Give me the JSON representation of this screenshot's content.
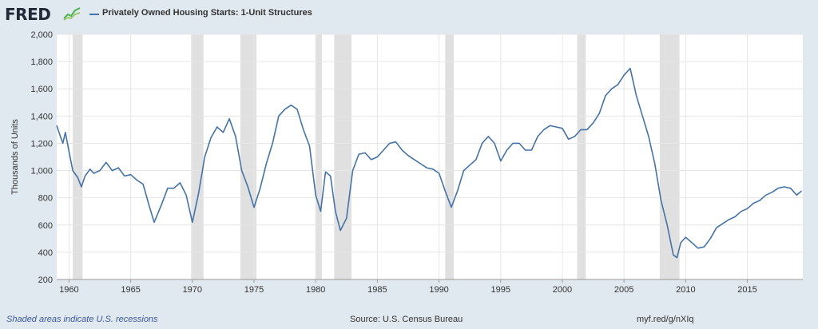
{
  "header": {
    "brand": "FRED",
    "brand_icon": "trend-graph-icon",
    "series_label": "Privately Owned Housing Starts: 1-Unit Structures"
  },
  "footer": {
    "recession_note": "Shaded areas indicate U.S. recessions",
    "source": "Source: U.S. Census Bureau",
    "short_link": "myf.red/g/nXIq"
  },
  "colors": {
    "background": "#e1e9f0",
    "series": "#4572a7",
    "recession": "#e0e0e0",
    "grid": "#e6e6e6"
  },
  "chart_data": {
    "type": "line",
    "title": "",
    "xlabel": "",
    "ylabel": "Thousands of Units",
    "xlim": [
      1959,
      2019.5
    ],
    "ylim": [
      200,
      2000
    ],
    "yticks": [
      200,
      400,
      600,
      800,
      1000,
      1200,
      1400,
      1600,
      1800,
      2000
    ],
    "ytick_labels": [
      "200",
      "400",
      "600",
      "800",
      "1,000",
      "1,200",
      "1,400",
      "1,600",
      "1,800",
      "2,000"
    ],
    "xticks": [
      1960,
      1965,
      1970,
      1975,
      1980,
      1985,
      1990,
      1995,
      2000,
      2005,
      2010,
      2015
    ],
    "xtick_labels": [
      "1960",
      "1965",
      "1970",
      "1975",
      "1980",
      "1985",
      "1990",
      "1995",
      "2000",
      "2005",
      "2010",
      "2015"
    ],
    "grid": true,
    "recessions": [
      [
        1960.3,
        1961.1
      ],
      [
        1969.9,
        1970.9
      ],
      [
        1973.9,
        1975.2
      ],
      [
        1980.0,
        1980.5
      ],
      [
        1981.5,
        1982.9
      ],
      [
        1990.5,
        1991.2
      ],
      [
        2001.2,
        2001.9
      ],
      [
        2007.9,
        2009.5
      ]
    ],
    "series": [
      {
        "name": "Privately Owned Housing Starts: 1-Unit Structures",
        "x": [
          1959.0,
          1959.3,
          1959.5,
          1959.7,
          1960.0,
          1960.3,
          1960.7,
          1961.0,
          1961.3,
          1961.7,
          1962.0,
          1962.5,
          1963.0,
          1963.5,
          1964.0,
          1964.5,
          1965.0,
          1965.5,
          1966.0,
          1966.5,
          1966.9,
          1967.5,
          1968.0,
          1968.5,
          1969.0,
          1969.5,
          1970.0,
          1970.5,
          1971.0,
          1971.5,
          1972.0,
          1972.5,
          1973.0,
          1973.5,
          1974.0,
          1974.5,
          1975.0,
          1975.5,
          1976.0,
          1976.5,
          1977.0,
          1977.5,
          1978.0,
          1978.5,
          1979.0,
          1979.5,
          1980.0,
          1980.4,
          1980.8,
          1981.2,
          1981.6,
          1982.0,
          1982.5,
          1983.0,
          1983.5,
          1984.0,
          1984.5,
          1985.0,
          1985.5,
          1986.0,
          1986.5,
          1987.0,
          1987.5,
          1988.0,
          1988.5,
          1989.0,
          1989.5,
          1990.0,
          1990.5,
          1991.0,
          1991.5,
          1992.0,
          1992.5,
          1993.0,
          1993.5,
          1994.0,
          1994.5,
          1995.0,
          1995.5,
          1996.0,
          1996.5,
          1997.0,
          1997.5,
          1998.0,
          1998.5,
          1999.0,
          1999.5,
          2000.0,
          2000.5,
          2001.0,
          2001.5,
          2002.0,
          2002.5,
          2003.0,
          2003.5,
          2004.0,
          2004.5,
          2005.0,
          2005.5,
          2006.0,
          2006.5,
          2007.0,
          2007.5,
          2008.0,
          2008.5,
          2009.0,
          2009.3,
          2009.6,
          2010.0,
          2010.5,
          2011.0,
          2011.5,
          2012.0,
          2012.5,
          2013.0,
          2013.5,
          2014.0,
          2014.5,
          2015.0,
          2015.5,
          2016.0,
          2016.5,
          2017.0,
          2017.5,
          2018.0,
          2018.5,
          2019.0,
          2019.4
        ],
        "values": [
          1330,
          1250,
          1200,
          1280,
          1140,
          1000,
          950,
          880,
          960,
          1010,
          980,
          1000,
          1060,
          1000,
          1020,
          960,
          970,
          930,
          900,
          740,
          620,
          750,
          870,
          870,
          910,
          820,
          620,
          830,
          1100,
          1240,
          1320,
          1280,
          1380,
          1250,
          1000,
          880,
          730,
          870,
          1050,
          1200,
          1400,
          1450,
          1480,
          1450,
          1300,
          1180,
          820,
          700,
          990,
          960,
          700,
          560,
          650,
          1000,
          1120,
          1130,
          1080,
          1100,
          1150,
          1200,
          1210,
          1150,
          1110,
          1080,
          1050,
          1020,
          1010,
          980,
          850,
          730,
          850,
          1000,
          1040,
          1080,
          1200,
          1250,
          1200,
          1070,
          1150,
          1200,
          1200,
          1150,
          1150,
          1250,
          1300,
          1330,
          1320,
          1310,
          1230,
          1250,
          1300,
          1300,
          1350,
          1420,
          1550,
          1600,
          1630,
          1700,
          1750,
          1550,
          1400,
          1250,
          1050,
          780,
          600,
          380,
          360,
          470,
          510,
          470,
          430,
          440,
          500,
          580,
          610,
          640,
          660,
          700,
          720,
          760,
          780,
          820,
          840,
          870,
          880,
          870,
          820,
          850
        ]
      }
    ]
  }
}
